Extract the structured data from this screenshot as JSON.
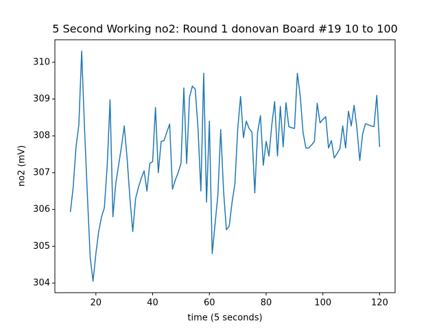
{
  "chart_data": {
    "type": "line",
    "title": "5 Second Working no2: Round 1 donovan Board #19 10 to 100",
    "x_label": "time (5 seconds)",
    "y_label": "no2 (mV)",
    "x": [
      11,
      12,
      13,
      14,
      15,
      16,
      17,
      18,
      19,
      20,
      21,
      22,
      23,
      24,
      25,
      26,
      27,
      28,
      29,
      30,
      31,
      32,
      33,
      34,
      35,
      36,
      37,
      38,
      39,
      40,
      41,
      42,
      43,
      44,
      45,
      46,
      47,
      48,
      49,
      50,
      51,
      52,
      53,
      54,
      55,
      56,
      57,
      58,
      59,
      60,
      61,
      62,
      63,
      64,
      65,
      66,
      67,
      68,
      69,
      70,
      71,
      72,
      73,
      74,
      75,
      76,
      77,
      78,
      79,
      80,
      81,
      82,
      83,
      84,
      85,
      86,
      87,
      88,
      89,
      90,
      91,
      92,
      93,
      94,
      95,
      96,
      97,
      98,
      99,
      100,
      101,
      102,
      103,
      104,
      105,
      106,
      107,
      108,
      109,
      110,
      111,
      112,
      113,
      114,
      115,
      116,
      117,
      118,
      119,
      120
    ],
    "series": [
      {
        "name": "no2",
        "color": "#1f77b4",
        "values": [
          305.93,
          306.6,
          307.7,
          308.3,
          310.3,
          308.2,
          306.4,
          304.7,
          304.05,
          304.8,
          305.4,
          305.8,
          306.05,
          307.2,
          308.98,
          305.8,
          306.7,
          307.2,
          307.7,
          308.27,
          307.4,
          306.3,
          305.4,
          306.3,
          306.6,
          306.85,
          307.05,
          306.5,
          307.25,
          307.3,
          308.77,
          307.0,
          307.85,
          307.87,
          308.1,
          308.32,
          306.55,
          306.8,
          307.0,
          307.25,
          309.3,
          307.25,
          309.05,
          309.35,
          309.27,
          308.2,
          306.5,
          309.7,
          306.2,
          308.4,
          304.8,
          305.6,
          306.4,
          308.17,
          306.5,
          305.45,
          305.55,
          306.2,
          306.7,
          308.2,
          309.07,
          307.95,
          308.4,
          308.2,
          308.1,
          306.45,
          308.1,
          308.55,
          307.2,
          307.85,
          307.45,
          308.3,
          308.93,
          307.45,
          308.8,
          307.7,
          308.9,
          308.25,
          308.22,
          308.2,
          309.7,
          309.1,
          308.1,
          307.67,
          307.67,
          307.75,
          307.85,
          308.88,
          308.35,
          308.45,
          308.52,
          307.67,
          307.87,
          307.4,
          307.52,
          307.65,
          308.27,
          307.67,
          308.67,
          308.27,
          308.83,
          308.2,
          307.33,
          308.05,
          308.33,
          308.3,
          308.27,
          308.25,
          309.1,
          307.7
        ]
      }
    ],
    "xlim": [
      5.55,
      125.45
    ],
    "xticks": [
      20,
      40,
      60,
      80,
      100,
      120
    ],
    "ylim": [
      303.74,
      310.61
    ],
    "yticks": [
      304,
      305,
      306,
      307,
      308,
      309,
      310
    ]
  }
}
